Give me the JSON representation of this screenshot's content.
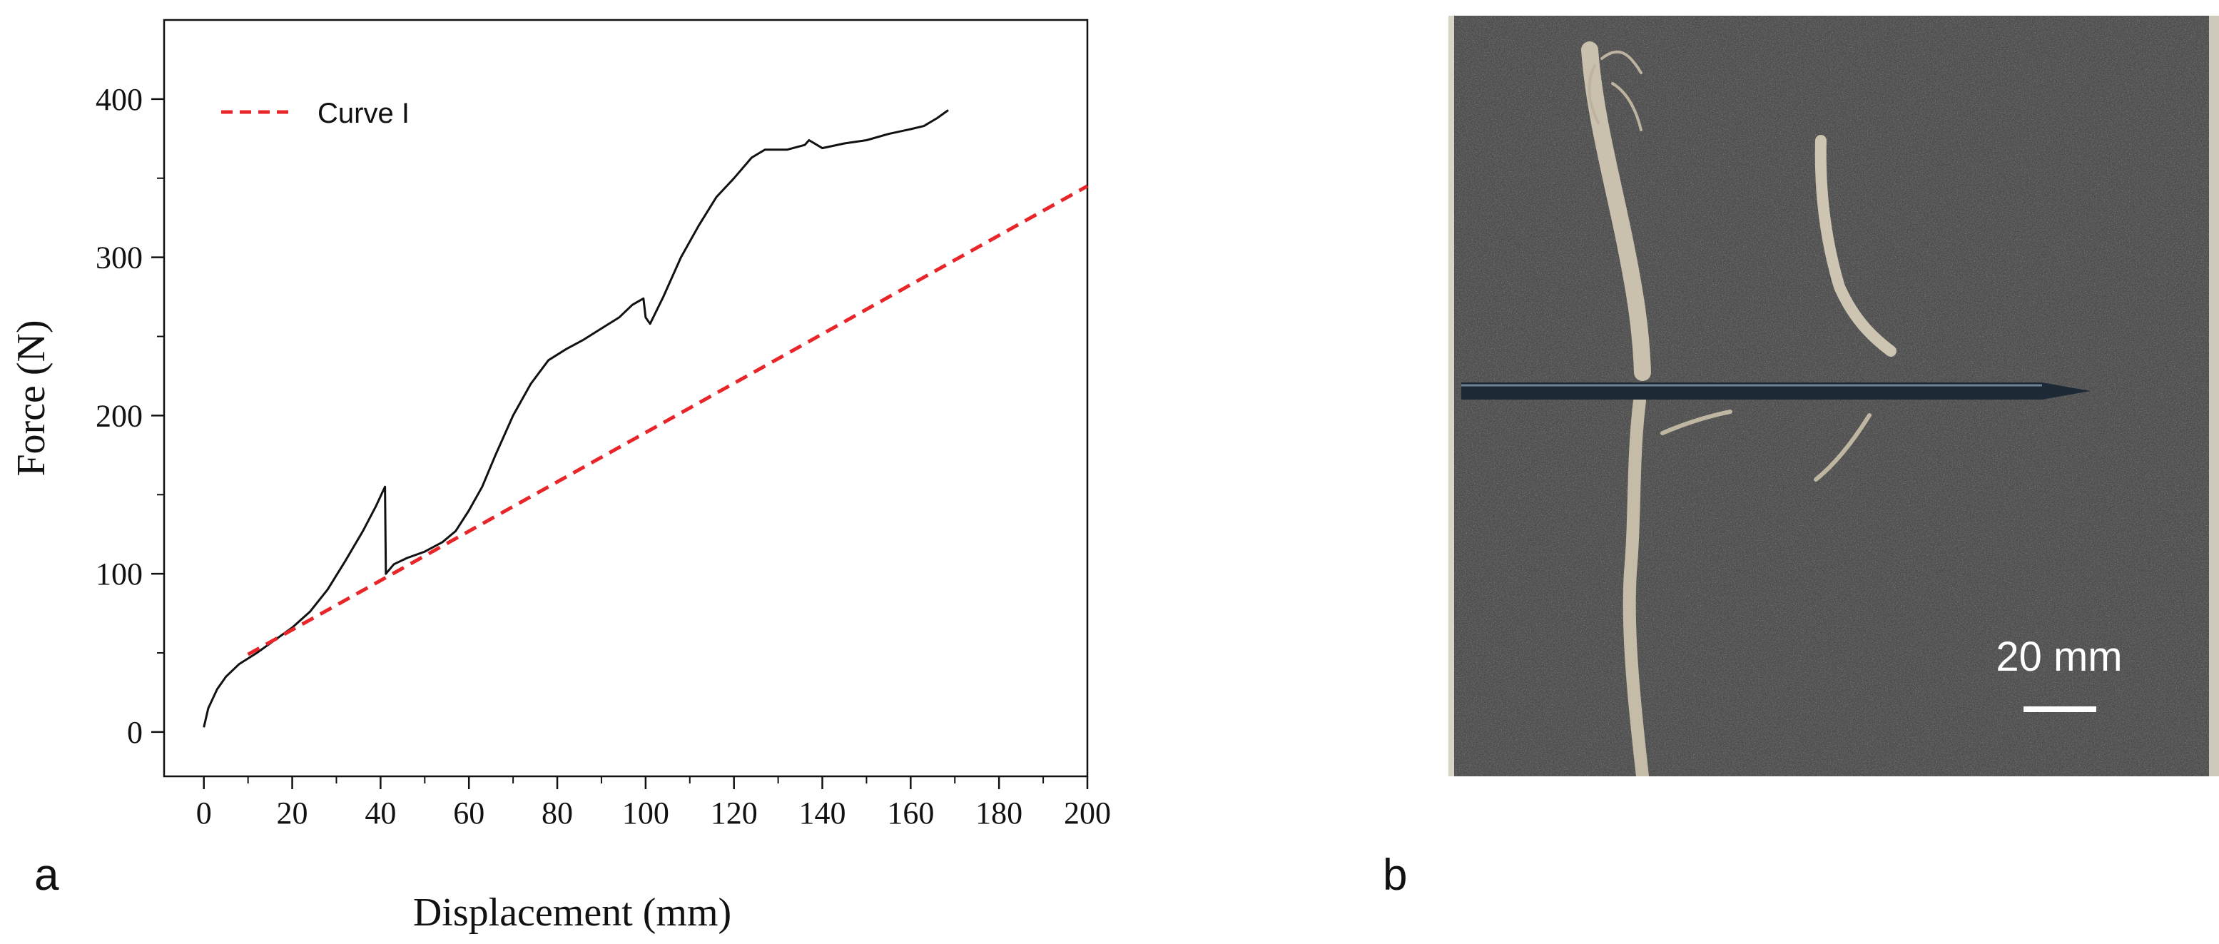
{
  "panel_a": {
    "letter": "a",
    "chart_data": {
      "type": "line",
      "xlabel": "Displacement (mm)",
      "ylabel": "Force (N)",
      "xlim": [
        -9,
        200
      ],
      "ylim": [
        -28,
        450
      ],
      "xticks": [
        0,
        20,
        40,
        60,
        80,
        100,
        120,
        140,
        160,
        180,
        200
      ],
      "yticks": [
        0,
        100,
        200,
        300,
        400
      ],
      "legend": {
        "position": "top-left",
        "entries": [
          "Curve I"
        ]
      },
      "grid": false,
      "series": [
        {
          "style": "solid",
          "color": "#111111",
          "points": [
            [
              0,
              3
            ],
            [
              1,
              15
            ],
            [
              3,
              27
            ],
            [
              5,
              35
            ],
            [
              8,
              43
            ],
            [
              12,
              50
            ],
            [
              16,
              58
            ],
            [
              20,
              66
            ],
            [
              24,
              76
            ],
            [
              28,
              90
            ],
            [
              32,
              108
            ],
            [
              36,
              127
            ],
            [
              39,
              143
            ],
            [
              40.5,
              152
            ],
            [
              41,
              155
            ],
            [
              41.2,
              100
            ],
            [
              43,
              106
            ],
            [
              46,
              110
            ],
            [
              50,
              114
            ],
            [
              54,
              120
            ],
            [
              57,
              127
            ],
            [
              60,
              140
            ],
            [
              63,
              155
            ],
            [
              66,
              175
            ],
            [
              70,
              200
            ],
            [
              74,
              220
            ],
            [
              78,
              235
            ],
            [
              82,
              242
            ],
            [
              86,
              248
            ],
            [
              90,
              255
            ],
            [
              94,
              262
            ],
            [
              97,
              270
            ],
            [
              99.5,
              274
            ],
            [
              100,
              262
            ],
            [
              101,
              258
            ],
            [
              104,
              275
            ],
            [
              108,
              300
            ],
            [
              112,
              320
            ],
            [
              116,
              338
            ],
            [
              120,
              350
            ],
            [
              124,
              363
            ],
            [
              127,
              368
            ],
            [
              132,
              368
            ],
            [
              136,
              371
            ],
            [
              137,
              374
            ],
            [
              140,
              369
            ],
            [
              145,
              372
            ],
            [
              150,
              374
            ],
            [
              155,
              378
            ],
            [
              160,
              381
            ],
            [
              163,
              383
            ],
            [
              166,
              388
            ],
            [
              168.5,
              393
            ]
          ]
        },
        {
          "name": "Curve I",
          "style": "dashed",
          "color": "#e8262a",
          "points": [
            [
              10,
              49
            ],
            [
              200,
              345
            ]
          ]
        }
      ]
    }
  },
  "panel_b": {
    "letter": "b",
    "scale_bar_label": "20 mm"
  }
}
